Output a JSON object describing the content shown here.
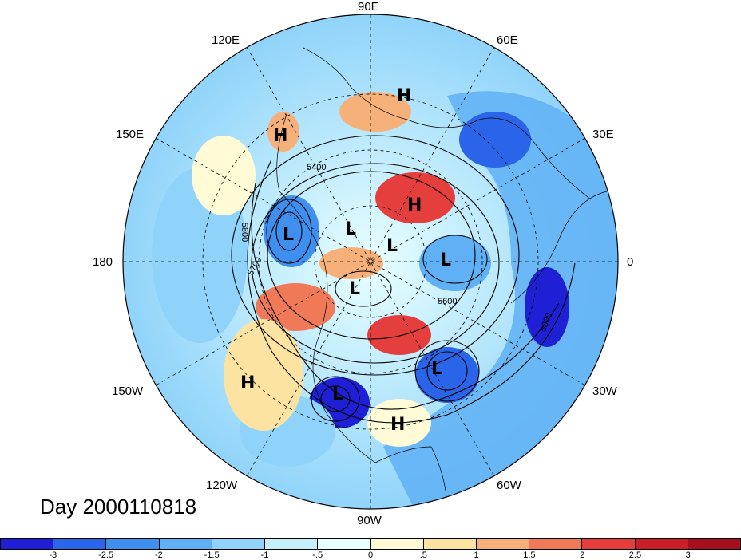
{
  "title": "Day 2000110818",
  "longitude_labels": [
    "90E",
    "60E",
    "30E",
    "0",
    "30W",
    "60W",
    "90W",
    "120W",
    "150W",
    "180",
    "150E",
    "120E"
  ],
  "pressure_systems": [
    {
      "type": "H",
      "name": "h-high-asia-north"
    },
    {
      "type": "H",
      "name": "h-high-kamchatka"
    },
    {
      "type": "H",
      "name": "h-high-central-asia"
    },
    {
      "type": "L",
      "name": "l-low-bering"
    },
    {
      "type": "L",
      "name": "l-low-arctic-1"
    },
    {
      "type": "L",
      "name": "l-low-arctic-2"
    },
    {
      "type": "L",
      "name": "l-low-europe"
    },
    {
      "type": "L",
      "name": "l-low-hudson"
    },
    {
      "type": "L",
      "name": "l-low-atlantic"
    },
    {
      "type": "L",
      "name": "l-low-usa"
    },
    {
      "type": "H",
      "name": "h-high-pacific"
    },
    {
      "type": "H",
      "name": "h-high-caribbean"
    }
  ],
  "contour_labels": [
    "5400",
    "5800",
    "5700",
    "5600",
    "5800"
  ],
  "colorbar": {
    "ticks": [
      "-3",
      "-2.5",
      "-2",
      "-1.5",
      "-1",
      "-.5",
      "0",
      ".5",
      "1",
      "1.5",
      "2",
      "2.5",
      "3"
    ],
    "colors": [
      "#1f1fd6",
      "#2a64e8",
      "#3f8fef",
      "#5fb0f5",
      "#8fd3fa",
      "#c7f0ff",
      "#e8ffff",
      "#fffbd6",
      "#fde3a1",
      "#f6b07a",
      "#f07a58",
      "#e53f3d",
      "#c8202b",
      "#a50f1f"
    ]
  }
}
